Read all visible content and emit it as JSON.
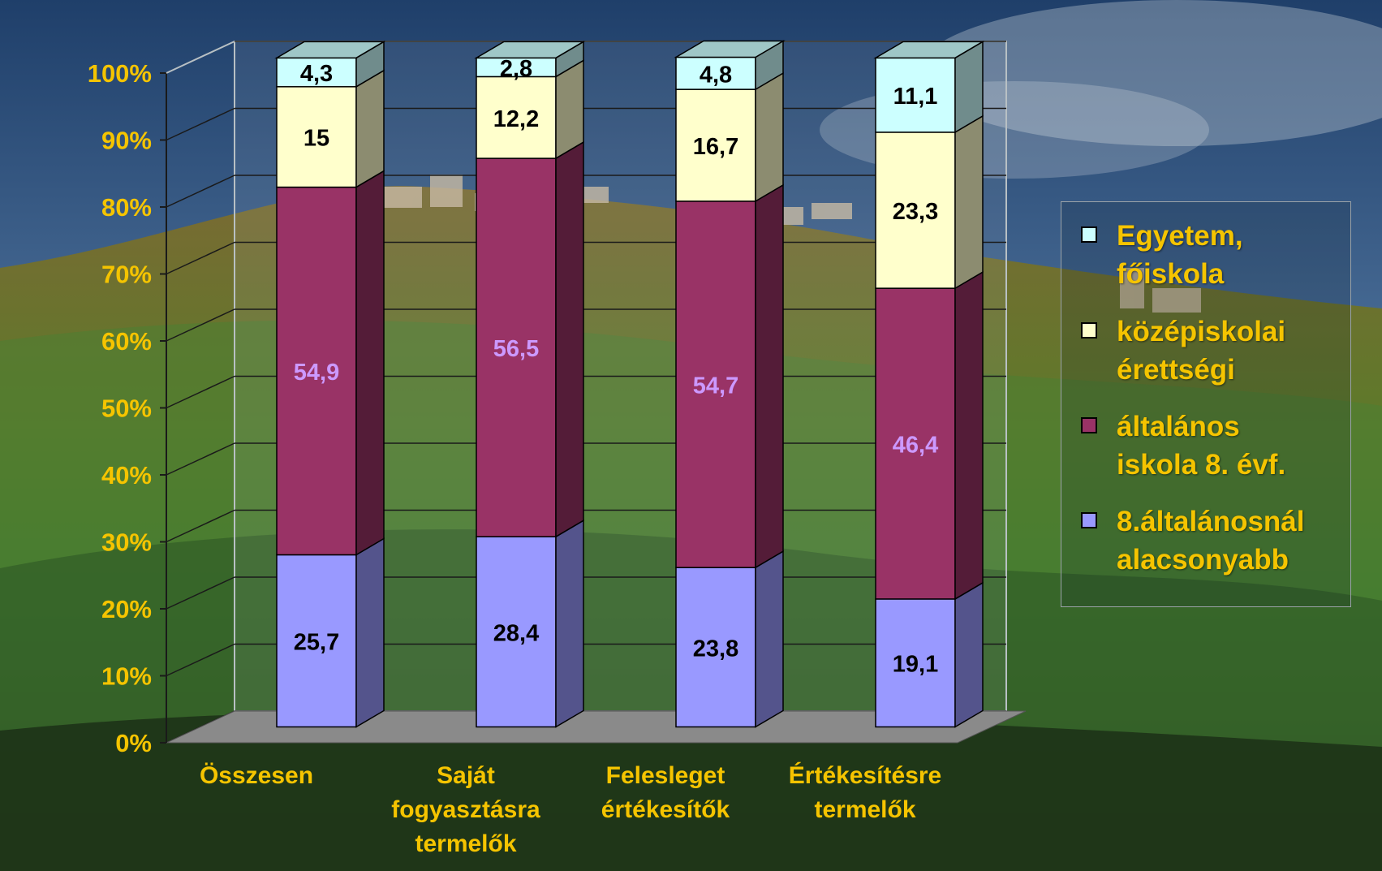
{
  "chart_data": {
    "type": "bar",
    "stacked": true,
    "percent_stacked": true,
    "three_d": true,
    "categories": [
      "Összesen",
      "Saját fogyasztásra termelők",
      "Felesleget értékesítők",
      "Értékesítésre termelők"
    ],
    "category_lines": [
      [
        "Összesen"
      ],
      [
        "Saját",
        "fogyasztásra",
        "termelők"
      ],
      [
        "Felesleget",
        "értékesítők"
      ],
      [
        "Értékesítésre",
        "termelők"
      ]
    ],
    "series": [
      {
        "name": "8.általánosnál alacsonyabb",
        "legend_lines": [
          "8.általánosnál",
          "alacsonyabb"
        ],
        "color": "#9999ff",
        "label_color": "#000000",
        "values": [
          25.7,
          28.4,
          23.8,
          19.1
        ],
        "labels": [
          "25,7",
          "28,4",
          "23,8",
          "19,1"
        ]
      },
      {
        "name": "általános iskola 8. évf.",
        "legend_lines": [
          "általános",
          "iskola 8. évf."
        ],
        "color": "#993366",
        "label_color": "#cc99ff",
        "values": [
          54.9,
          56.5,
          54.7,
          46.4
        ],
        "labels": [
          "54,9",
          "56,5",
          "54,7",
          "46,4"
        ]
      },
      {
        "name": "középiskolai érettségi",
        "legend_lines": [
          "középiskolai",
          "érettségi"
        ],
        "color": "#ffffcc",
        "label_color": "#000000",
        "values": [
          15,
          12.2,
          16.7,
          23.3
        ],
        "labels": [
          "15",
          "12,2",
          "16,7",
          "23,3"
        ]
      },
      {
        "name": "Egyetem, főiskola",
        "legend_lines": [
          "Egyetem,",
          "főiskola"
        ],
        "color": "#ccffff",
        "label_color": "#000000",
        "values": [
          4.3,
          2.8,
          4.8,
          11.1
        ],
        "labels": [
          "4,3",
          "2,8",
          "4,8",
          "11,1"
        ]
      }
    ],
    "y_ticks": [
      "0%",
      "10%",
      "20%",
      "30%",
      "40%",
      "50%",
      "60%",
      "70%",
      "80%",
      "90%",
      "100%"
    ],
    "ylim": [
      0,
      100
    ],
    "grid": true,
    "legend_position": "right",
    "text_color": "#f5c400"
  }
}
